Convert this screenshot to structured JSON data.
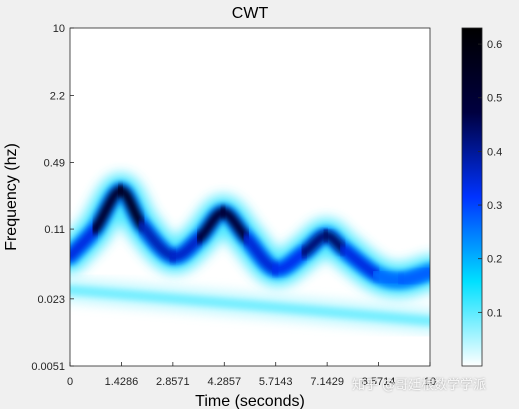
{
  "chart_data": {
    "type": "heatmap",
    "title": "CWT",
    "xlabel": "Time (seconds)",
    "ylabel": "Frequency (hz)",
    "xlim": [
      0,
      10
    ],
    "ylim": [
      0.0051,
      10
    ],
    "yscale": "log",
    "x_ticks": [
      "0",
      "1.4286",
      "2.8571",
      "4.2857",
      "5.7143",
      "7.1429",
      "8.5714",
      "10"
    ],
    "y_ticks": [
      "10",
      "2.2",
      "0.49",
      "0.11",
      "0.023",
      "0.0051"
    ],
    "x_tick_values": [
      0,
      1.4286,
      2.8571,
      4.2857,
      5.7143,
      7.1429,
      8.5714,
      10
    ],
    "y_tick_values": [
      10,
      2.2,
      0.49,
      0.11,
      0.023,
      0.0051
    ],
    "colorbar": {
      "range": [
        0,
        0.63
      ],
      "ticks": [
        "0.1",
        "0.2",
        "0.3",
        "0.4",
        "0.5",
        "0.6"
      ],
      "tick_values": [
        0.1,
        0.2,
        0.3,
        0.4,
        0.5,
        0.6
      ],
      "colormap": [
        "#ffffff",
        "#00e0ff",
        "#0033ff",
        "#000040",
        "#000000"
      ]
    },
    "features": [
      {
        "kind": "oscillating-ridge",
        "time": [
          0.0,
          0.7,
          1.4,
          2.0,
          2.85,
          3.6,
          4.25,
          4.9,
          5.7,
          6.5,
          7.1,
          7.6,
          8.5,
          9.2,
          10.0
        ],
        "frequency": [
          0.06,
          0.11,
          0.26,
          0.12,
          0.06,
          0.09,
          0.16,
          0.09,
          0.045,
          0.065,
          0.095,
          0.07,
          0.04,
          0.035,
          0.042
        ],
        "magnitude": [
          0.28,
          0.4,
          0.62,
          0.45,
          0.3,
          0.42,
          0.55,
          0.42,
          0.28,
          0.38,
          0.48,
          0.4,
          0.28,
          0.25,
          0.3
        ]
      },
      {
        "kind": "drifting-band",
        "time": [
          0.0,
          5.0,
          10.0
        ],
        "frequency": [
          0.028,
          0.02,
          0.014
        ],
        "magnitude": [
          0.15,
          0.12,
          0.08
        ]
      }
    ]
  },
  "watermark": "知乎 @哥廷根数学学派"
}
